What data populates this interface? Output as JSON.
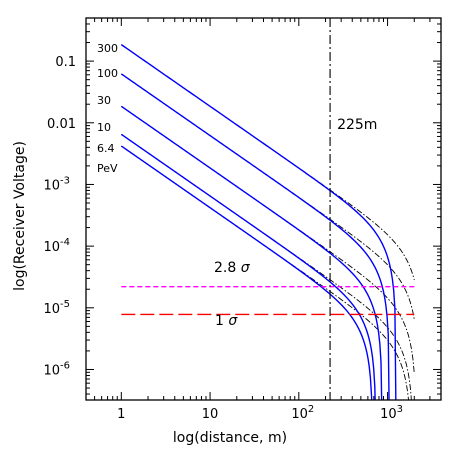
{
  "chart_data": {
    "type": "line",
    "xlabel": "log(distance, m)",
    "ylabel": "log(Receiver Voltage)",
    "xscale": "log",
    "yscale": "log",
    "xlim": [
      0.4,
      4000
    ],
    "ylim": [
      3.2e-07,
      0.5
    ],
    "x_ticks": [
      {
        "value": 1,
        "label": "1"
      },
      {
        "value": 10,
        "label": "10"
      },
      {
        "value": 100,
        "label": "10",
        "sup": "2"
      },
      {
        "value": 1000,
        "label": "10",
        "sup": "3"
      }
    ],
    "y_ticks": [
      {
        "value": 1e-06,
        "label": "10",
        "sup": "-6"
      },
      {
        "value": 1e-05,
        "label": "10",
        "sup": "-5"
      },
      {
        "value": 0.0001,
        "label": "10",
        "sup": "-4"
      },
      {
        "value": 0.001,
        "label": "10",
        "sup": "-3"
      },
      {
        "value": 0.01,
        "label": "0.01"
      },
      {
        "value": 0.1,
        "label": "0.1"
      }
    ],
    "energy_labels": [
      "300",
      "100",
      "30",
      "10",
      "6.4",
      "PeV"
    ],
    "series": [
      {
        "energy": 300,
        "y_at_1m": 0.185,
        "x_start": 1,
        "solid_end": 2000,
        "dashdot_end": 2000,
        "solid_cutoff": 1250,
        "dashdot_cutoff": 2400
      },
      {
        "energy": 100,
        "y_at_1m": 0.062,
        "x_start": 1,
        "solid_end": 2000,
        "dashdot_end": 2000,
        "solid_cutoff": 1050,
        "dashdot_cutoff": 2250
      },
      {
        "energy": 30,
        "y_at_1m": 0.0185,
        "x_start": 1,
        "solid_end": 2000,
        "dashdot_end": 2000,
        "solid_cutoff": 870,
        "dashdot_cutoff": 2100
      },
      {
        "energy": 10,
        "y_at_1m": 0.0065,
        "x_start": 1,
        "solid_end": 2000,
        "dashdot_end": 2000,
        "solid_cutoff": 740,
        "dashdot_cutoff": 1950
      },
      {
        "energy": 6.4,
        "y_at_1m": 0.0042,
        "x_start": 1,
        "solid_end": 2000,
        "dashdot_end": 2000,
        "solid_cutoff": 680,
        "dashdot_cutoff": 1850
      }
    ],
    "thresholds": [
      {
        "label": "2.8",
        "sigma": "σ",
        "y": 2.2e-05,
        "x_range": [
          1,
          2000
        ],
        "color": "#ff00ff",
        "style": "short-dash"
      },
      {
        "label": "1",
        "sigma": "σ",
        "y": 7.8e-06,
        "x_range": [
          1,
          2000
        ],
        "color": "#ff0000",
        "style": "long-dash"
      }
    ],
    "vline": {
      "x": 225,
      "label": "225m",
      "style": "dash-dot",
      "color": "#000000"
    },
    "colors": {
      "solid": "#0000ff",
      "dashdot": "#000000"
    },
    "grid": false,
    "legend": "none"
  }
}
